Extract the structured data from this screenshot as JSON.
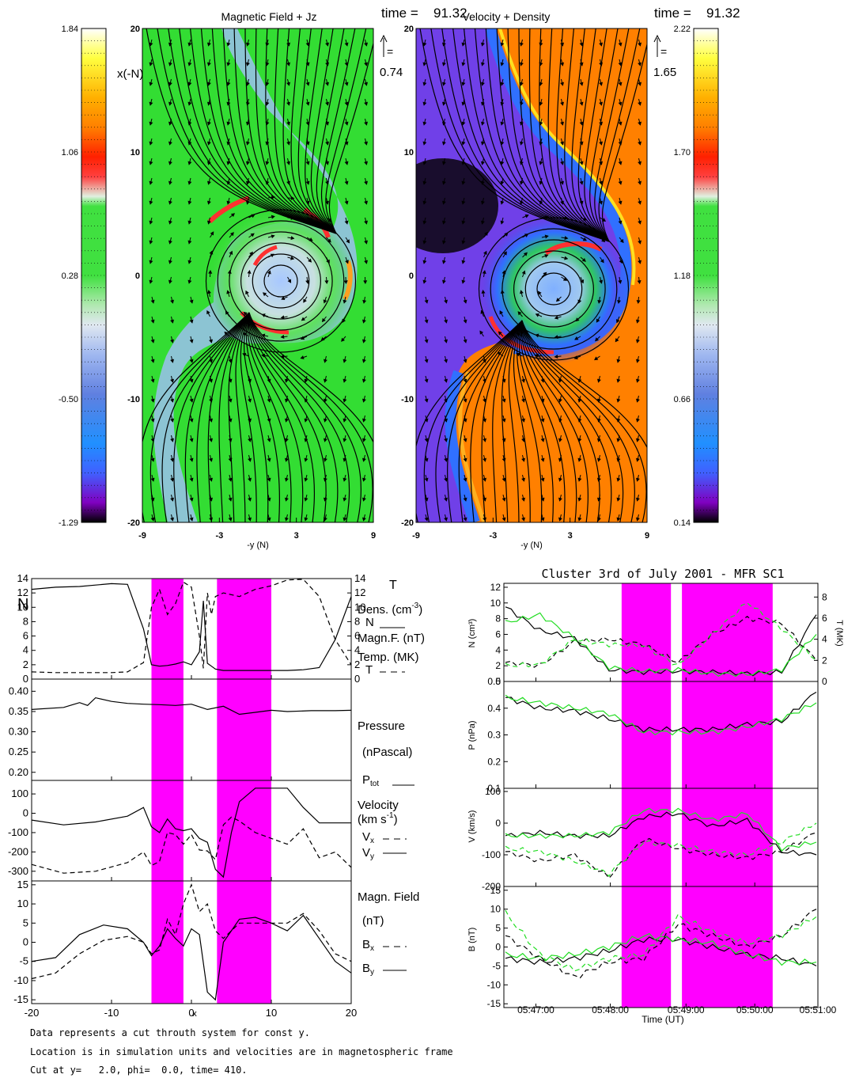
{
  "maps": {
    "left": {
      "title": "Magnetic Field + Jz",
      "time_label": "time =",
      "time_value": "91.32",
      "arrow_label": "=",
      "arrow_value": "0.74",
      "ylabel": "x(-N)",
      "xlabel": "-y (N)",
      "xticks": [
        "-9",
        "-3",
        "3",
        "9"
      ],
      "yticks": [
        "20",
        "10",
        "0",
        "-10",
        "-20"
      ],
      "colorbar_ticks": [
        "1.84",
        "1.06",
        "0.28",
        "-0.50",
        "-1.29"
      ],
      "background": "#33dd33"
    },
    "right": {
      "title": "Velocity + Density",
      "time_label": "time =",
      "time_value": "91.32",
      "arrow_label": "=",
      "arrow_value": "1.65",
      "xlabel": "-y (N)",
      "xticks": [
        "-9",
        "-3",
        "3",
        "9"
      ],
      "yticks": [
        "20",
        "10",
        "0",
        "-10",
        "-20"
      ],
      "colorbar_ticks": [
        "2.22",
        "1.70",
        "1.18",
        "0.66",
        "0.14"
      ],
      "background": "#ff8000"
    }
  },
  "sim": {
    "xlabel": "x",
    "xticks": [
      "-20",
      "-10",
      "0",
      "10",
      "20"
    ],
    "shaded_x": [
      [
        -5,
        -1
      ],
      [
        3.2,
        10
      ]
    ],
    "panel1": {
      "left_label": "N",
      "right_label": "T",
      "yticks": [
        "14",
        "12",
        "10",
        "8",
        "6",
        "4",
        "2",
        "0"
      ],
      "legend": [
        "Dens. (cm",
        "-3",
        ")",
        "N",
        "Magn.F. (nT)",
        "Temp. (MK)",
        "T"
      ]
    },
    "panel2": {
      "yticks": [
        "0.40",
        "0.35",
        "0.30",
        "0.25",
        "0.20"
      ],
      "legend": [
        "Pressure",
        "(nPascal)",
        "P",
        "tot"
      ]
    },
    "panel3": {
      "yticks": [
        "100",
        "0",
        "-100",
        "-200",
        "-300"
      ],
      "legend": [
        "Velocity",
        "(km s",
        "-1",
        ")",
        "V",
        "x",
        "V",
        "y"
      ]
    },
    "panel4": {
      "yticks": [
        "15",
        "10",
        "5",
        "0",
        "-5",
        "-10",
        "-15"
      ],
      "legend": [
        "Magn. Field",
        "(nT)",
        "B",
        "x",
        "B",
        "y"
      ]
    }
  },
  "cluster": {
    "title": "Cluster 3rd of July 2001 - MFR SC1",
    "xlabel": "Time (UT)",
    "xticks": [
      "05:47:00",
      "05:48:00",
      "05:49:00",
      "05:50:00",
      "05:51:00"
    ],
    "shaded": [
      [
        0.375,
        0.532
      ],
      [
        0.567,
        0.856
      ]
    ],
    "panel1": {
      "ylabel": "N (cm³)",
      "yticks": [
        "12",
        "10",
        "8",
        "6",
        "4",
        "2",
        "0"
      ],
      "y2label": "T (MK)",
      "y2ticks": [
        "8",
        "6",
        "4",
        "2",
        "0"
      ]
    },
    "panel2": {
      "ylabel": "P (nPa)",
      "yticks": [
        "0.5",
        "0.4",
        "0.3",
        "0.2",
        "0.1"
      ]
    },
    "panel3": {
      "ylabel": "V (km/s)",
      "yticks": [
        "100",
        "0",
        "-100",
        "-200"
      ]
    },
    "panel4": {
      "ylabel": "B (nT)",
      "yticks": [
        "15",
        "10",
        "5",
        "0",
        "-5",
        "-10",
        "-15"
      ]
    }
  },
  "footnote": [
    "Data represents a cut throuth system for const y.",
    "Location is in simulation units and velocities are in magnetospheric frame",
    "Cut at y=   2.0, phi=  0.0, time= 410."
  ],
  "colors": {
    "shade": "#ff00ff",
    "green_line": "#22dd22"
  },
  "chart_data": [
    {
      "type": "line",
      "title": "",
      "xlabel": "x",
      "xlim": [
        -20,
        20
      ],
      "x": [
        -20,
        -17,
        -14,
        -12,
        -10,
        -8,
        -6,
        -5,
        -4,
        -3,
        -2,
        -1,
        0,
        1,
        1.5,
        2,
        2.5,
        3,
        4,
        6,
        8,
        10,
        12,
        14,
        16,
        18,
        20
      ],
      "series": [
        {
          "name": "N",
          "values": [
            12.5,
            12.8,
            12.9,
            13.1,
            13.3,
            13.2,
            7,
            2.0,
            1.8,
            1.9,
            2.1,
            2.4,
            2.0,
            3.8,
            10.9,
            2.2,
            1.8,
            1.4,
            1.2,
            1.2,
            1.2,
            1.2,
            1.2,
            1.3,
            1.6,
            5.5,
            11.5
          ]
        },
        {
          "name": "T",
          "values": [
            1.0,
            0.9,
            0.9,
            0.9,
            0.9,
            1.0,
            2.3,
            10.0,
            12.5,
            9.0,
            10.5,
            13.5,
            12.8,
            6.0,
            1.5,
            12.0,
            9.0,
            11.5,
            12.0,
            11.5,
            12.5,
            13.0,
            13.8,
            13.9,
            11.5,
            5.5,
            2.0
          ]
        }
      ],
      "ylim": [
        0,
        14
      ]
    },
    {
      "type": "line",
      "xlim": [
        -20,
        20
      ],
      "x": [
        -20,
        -16,
        -14,
        -13,
        -12,
        -10,
        -8,
        -6,
        -4,
        -2,
        0,
        2,
        4,
        6,
        8,
        10,
        12,
        15,
        18,
        20
      ],
      "series": [
        {
          "name": "Ptot",
          "values": [
            0.355,
            0.36,
            0.372,
            0.365,
            0.384,
            0.375,
            0.37,
            0.368,
            0.367,
            0.365,
            0.368,
            0.355,
            0.363,
            0.343,
            0.348,
            0.353,
            0.35,
            0.352,
            0.352,
            0.353
          ]
        }
      ],
      "ylim": [
        0.18,
        0.43
      ]
    },
    {
      "type": "line",
      "xlim": [
        -20,
        20
      ],
      "x": [
        -20,
        -16,
        -12,
        -8,
        -6,
        -5,
        -4,
        -3,
        -2,
        -1,
        0,
        1,
        2,
        3,
        4,
        5,
        6,
        8,
        10,
        12,
        14,
        16,
        18,
        20
      ],
      "series": [
        {
          "name": "Vx",
          "values": [
            -265,
            -310,
            -300,
            -255,
            -200,
            -270,
            -250,
            -100,
            -110,
            -160,
            -110,
            -190,
            -195,
            -240,
            -60,
            -20,
            -40,
            -100,
            -130,
            -160,
            -80,
            -230,
            -200,
            -280
          ]
        },
        {
          "name": "Vy",
          "values": [
            -35,
            -60,
            -45,
            -15,
            30,
            -70,
            -100,
            -30,
            -80,
            -90,
            -80,
            -130,
            -150,
            -290,
            -330,
            -100,
            60,
            130,
            130,
            130,
            30,
            -50,
            -50,
            -50
          ]
        }
      ],
      "ylim": [
        -350,
        170
      ]
    },
    {
      "type": "line",
      "xlim": [
        -20,
        20
      ],
      "x": [
        -20,
        -17,
        -14,
        -11,
        -8,
        -6,
        -5,
        -4,
        -3,
        -2,
        -1,
        0,
        1,
        2,
        3,
        4,
        6,
        8,
        10,
        12,
        14,
        16,
        18,
        20
      ],
      "series": [
        {
          "name": "Bx",
          "values": [
            -9.5,
            -8,
            -3,
            0.5,
            1.5,
            0,
            -3,
            -2,
            6,
            2,
            10,
            15,
            8,
            10,
            3,
            1,
            5,
            5,
            5,
            5,
            7.5,
            3,
            -3,
            -5
          ]
        },
        {
          "name": "By",
          "values": [
            -5,
            -4,
            2,
            4.5,
            3.5,
            0,
            -3.5,
            -1,
            3.5,
            1,
            -1,
            3.5,
            2,
            -13,
            -15,
            0,
            6,
            6.5,
            5,
            3,
            7,
            1,
            -5,
            -8
          ]
        }
      ],
      "ylim": [
        -16,
        16
      ]
    },
    {
      "type": "line",
      "title": "Cluster 3rd of July 2001 - MFR SC1",
      "xlabel": "Time (UT)",
      "x": [
        "05:46:30",
        "05:47:00",
        "05:47:30",
        "05:48:00",
        "05:48:30",
        "05:49:00",
        "05:49:30",
        "05:50:00",
        "05:50:30",
        "05:51:00"
      ],
      "series": [
        {
          "name": "N",
          "values": [
            9.5,
            6.5,
            5.5,
            1.5,
            1.2,
            1.3,
            1.2,
            1.0,
            1.2,
            8.5
          ]
        },
        {
          "name": "N (green)",
          "values": [
            7.5,
            8.5,
            5.5,
            1.8,
            1.3,
            1.5,
            1.0,
            0.9,
            1.5,
            6
          ]
        },
        {
          "name": "T",
          "values": [
            1.8,
            1.5,
            3.8,
            4.0,
            3.5,
            1.8,
            4.5,
            6.0,
            5.5,
            2
          ]
        },
        {
          "name": "T (green)",
          "values": [
            1.5,
            1.6,
            4.0,
            3.5,
            3.4,
            1.5,
            4.5,
            7.5,
            5.0,
            2
          ]
        }
      ],
      "ylim": [
        0,
        12.5
      ]
    },
    {
      "type": "line",
      "x": [
        "05:46:30",
        "05:47:00",
        "05:47:30",
        "05:48:00",
        "05:48:30",
        "05:49:00",
        "05:49:30",
        "05:50:00",
        "05:50:30",
        "05:51:00"
      ],
      "series": [
        {
          "name": "P",
          "values": [
            0.44,
            0.4,
            0.39,
            0.36,
            0.32,
            0.32,
            0.32,
            0.34,
            0.35,
            0.46
          ]
        },
        {
          "name": "P (green)",
          "values": [
            0.44,
            0.42,
            0.4,
            0.38,
            0.31,
            0.31,
            0.31,
            0.33,
            0.36,
            0.42
          ]
        }
      ],
      "ylim": [
        0.1,
        0.5
      ]
    },
    {
      "type": "line",
      "x": [
        "05:46:30",
        "05:47:00",
        "05:47:30",
        "05:48:00",
        "05:48:30",
        "05:49:00",
        "05:49:30",
        "05:50:00",
        "05:50:30",
        "05:51:00"
      ],
      "series": [
        {
          "name": "V",
          "values": [
            -40,
            -30,
            -40,
            -40,
            20,
            30,
            -10,
            10,
            -90,
            -100
          ]
        },
        {
          "name": "V (green)",
          "values": [
            -40,
            -40,
            -40,
            -30,
            40,
            40,
            10,
            30,
            -80,
            -60
          ]
        },
        {
          "name": "V dashed",
          "values": [
            -90,
            -120,
            -100,
            -170,
            -50,
            -80,
            -100,
            -110,
            -90,
            -30
          ]
        },
        {
          "name": "V dashed (green)",
          "values": [
            -80,
            -90,
            -120,
            -160,
            -60,
            -70,
            -90,
            -100,
            -60,
            0
          ]
        }
      ],
      "ylim": [
        -200,
        110
      ]
    },
    {
      "type": "line",
      "x": [
        "05:46:30",
        "05:47:00",
        "05:47:30",
        "05:48:00",
        "05:48:30",
        "05:49:00",
        "05:49:30",
        "05:50:00",
        "05:50:30",
        "05:51:00"
      ],
      "series": [
        {
          "name": "B",
          "values": [
            -3,
            -4,
            -3,
            -1,
            2,
            2,
            0,
            -2,
            -3,
            -5
          ]
        },
        {
          "name": "B (green)",
          "values": [
            -2,
            -3,
            -2,
            0,
            3,
            2,
            1,
            -2,
            -4,
            -4
          ]
        },
        {
          "name": "B dashed",
          "values": [
            3,
            -3,
            -8,
            -4,
            -3,
            6,
            3,
            0,
            3,
            10
          ]
        },
        {
          "name": "B dashed (green)",
          "values": [
            9,
            -2,
            -6,
            -3,
            -2,
            8,
            4,
            1,
            3,
            8
          ]
        }
      ],
      "ylim": [
        -16,
        16
      ]
    }
  ]
}
